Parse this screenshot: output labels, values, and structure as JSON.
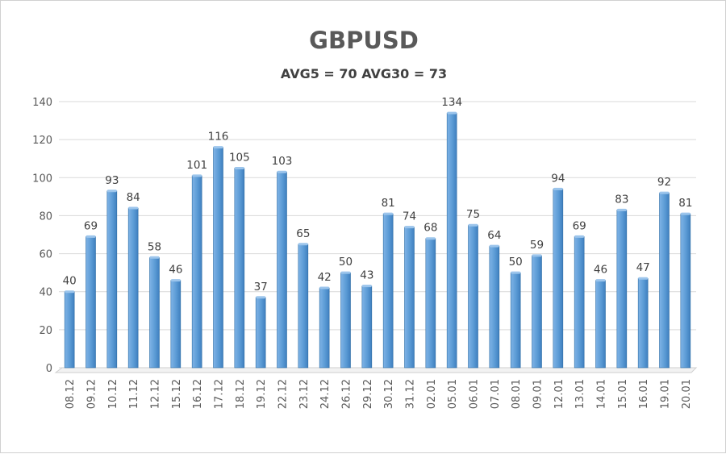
{
  "chart_data": {
    "type": "bar",
    "title": "GBPUSD",
    "subtitle": "AVG5 = 70 AVG30 = 73",
    "xlabel": "",
    "ylabel": "",
    "ylim": [
      0,
      140
    ],
    "yticks": [
      0,
      20,
      40,
      60,
      80,
      100,
      120,
      140
    ],
    "grid": true,
    "categories": [
      "08.12",
      "09.12",
      "10.12",
      "11.12",
      "12.12",
      "15.12",
      "16.12",
      "17.12",
      "18.12",
      "19.12",
      "22.12",
      "23.12",
      "24.12",
      "26.12",
      "29.12",
      "30.12",
      "31.12",
      "02.01",
      "05.01",
      "06.01",
      "07.01",
      "08.01",
      "09.01",
      "12.01",
      "13.01",
      "14.01",
      "15.01",
      "16.01",
      "19.01",
      "20.01"
    ],
    "values": [
      40,
      69,
      93,
      84,
      58,
      46,
      101,
      116,
      105,
      37,
      103,
      65,
      42,
      50,
      43,
      81,
      74,
      68,
      134,
      75,
      64,
      50,
      59,
      94,
      69,
      46,
      83,
      47,
      92,
      81
    ],
    "bar_color": "#5B9BD5"
  }
}
